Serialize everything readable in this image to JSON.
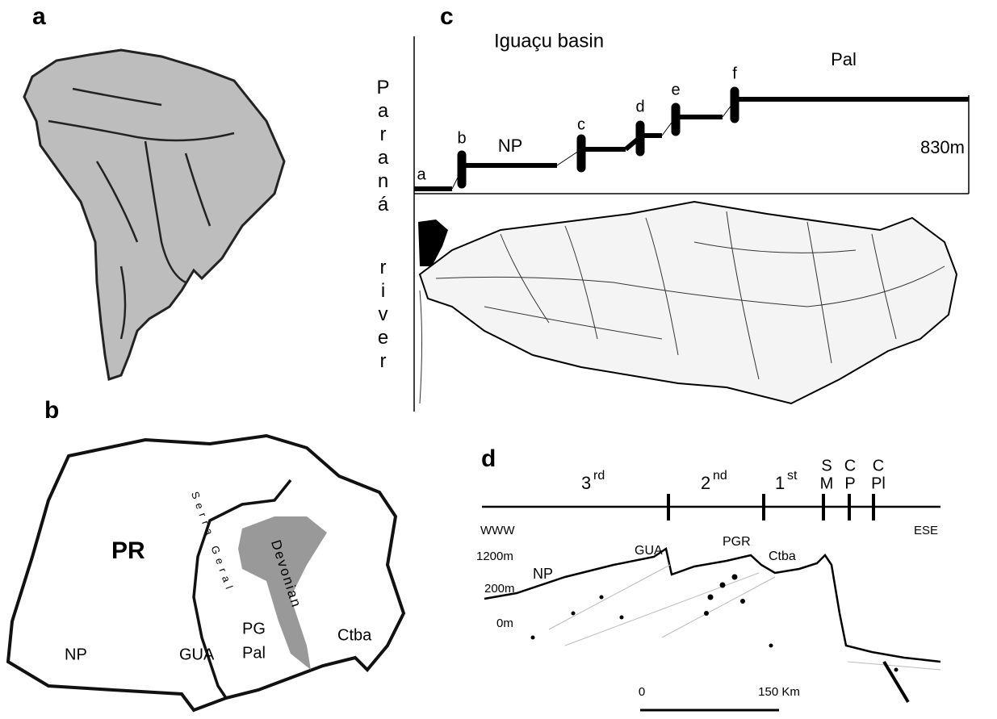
{
  "panels": {
    "a": {
      "label": "a"
    },
    "b": {
      "label": "b",
      "state": "PR",
      "serra": "Serra Geral",
      "devonian": "Devonian",
      "places": [
        "NP",
        "GUA",
        "PG",
        "Pal",
        "Ctba"
      ]
    },
    "c": {
      "label": "c",
      "title": "Iguaçu basin",
      "river": [
        "Paraná",
        "river"
      ],
      "steps": [
        "a",
        "b",
        "c",
        "d",
        "e",
        "f"
      ],
      "units": [
        "NP",
        "Pal"
      ],
      "elevation": "830m"
    },
    "d": {
      "label": "d",
      "plateaus": [
        {
          "number": "3",
          "suffix": "rd"
        },
        {
          "number": "2",
          "suffix": "nd"
        },
        {
          "number": "1",
          "suffix": "st"
        }
      ],
      "zones": [
        [
          "S",
          "M"
        ],
        [
          "C",
          "P"
        ],
        [
          "C",
          "Pl"
        ]
      ],
      "directions": [
        "WWW",
        "ESE"
      ],
      "elevations": [
        "1200m",
        "200m",
        "0m"
      ],
      "places": [
        "NP",
        "GUA",
        "PGR",
        "Ctba"
      ],
      "scale": [
        "0",
        "150 Km"
      ]
    }
  }
}
